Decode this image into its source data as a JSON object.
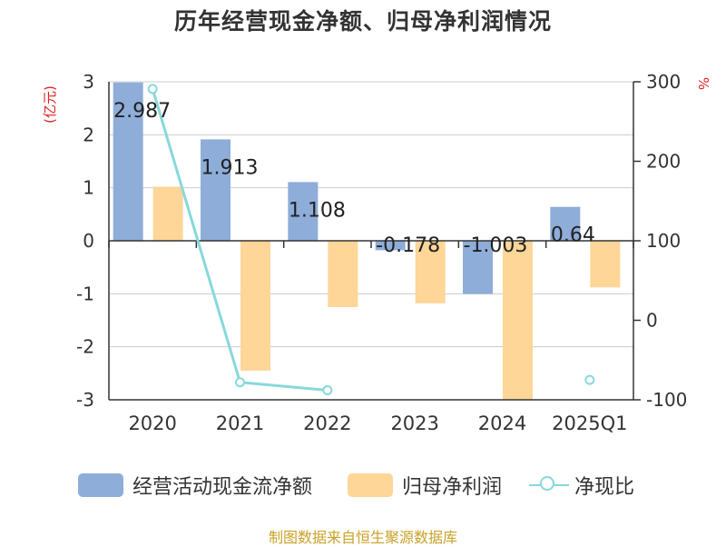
{
  "title": "历年经营现金净额、归母净利润情况",
  "source": "制图数据来自恒生聚源数据库",
  "chart_data": {
    "type": "bar",
    "categories": [
      "2020",
      "2021",
      "2022",
      "2023",
      "2024",
      "2025Q1"
    ],
    "y_left": {
      "label": "(亿元)",
      "ticks": [
        3,
        2,
        1,
        0,
        -1,
        -2,
        -3
      ],
      "range": [
        -3,
        3
      ]
    },
    "y_right": {
      "label": "%",
      "ticks": [
        300,
        200,
        100,
        0,
        -100
      ],
      "range": [
        -100,
        300
      ]
    },
    "series": [
      {
        "name": "经营活动现金流净额",
        "axis": "left",
        "kind": "bar",
        "color": "#8eadd9",
        "values": [
          2.987,
          1.913,
          1.108,
          -0.178,
          -1.003,
          0.64
        ],
        "labels": [
          "2.987",
          "1.913",
          "1.108",
          "-0.178",
          "-1.003",
          "0.64"
        ]
      },
      {
        "name": "归母净利润",
        "axis": "left",
        "kind": "bar",
        "color": "#fdd698",
        "values": [
          1.02,
          -2.45,
          -1.25,
          -1.18,
          -3.0,
          -0.88
        ]
      },
      {
        "name": "净现比",
        "axis": "right",
        "kind": "line",
        "color": "#88d8db",
        "values": [
          291,
          -78,
          -88,
          null,
          null,
          -75
        ]
      }
    ],
    "grid": true,
    "legend_position": "bottom"
  }
}
